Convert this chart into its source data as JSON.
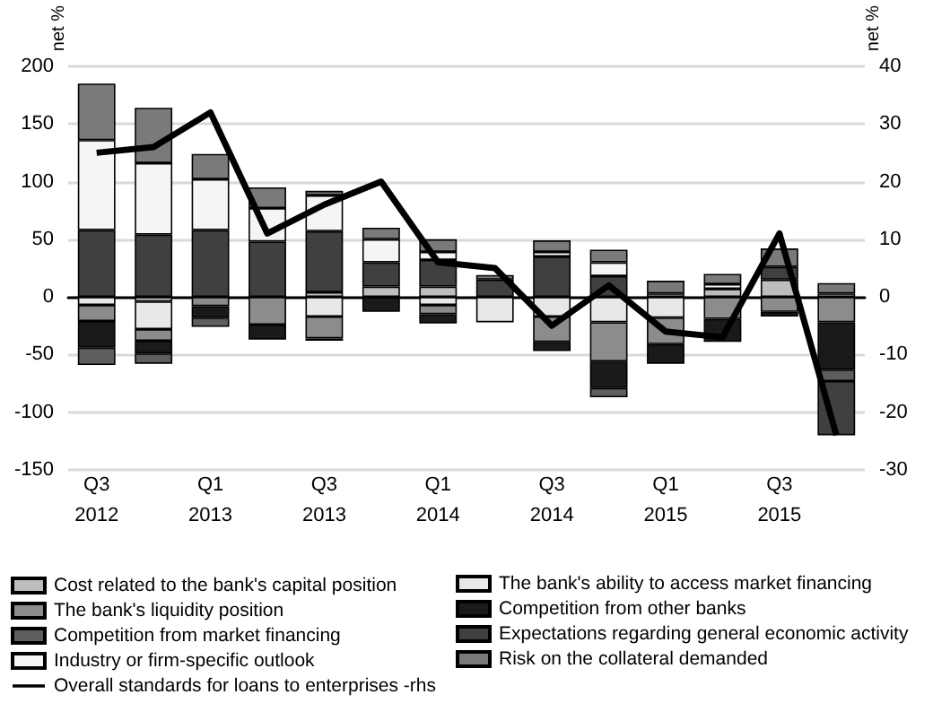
{
  "chart_data": {
    "type": "bar",
    "stacked": true,
    "ylabel": "net %",
    "y2label": "net %",
    "categories": [
      "Q3\n2012",
      null,
      "Q1\n2013",
      null,
      "Q3\n2013",
      null,
      "Q1\n2014",
      null,
      "Q3\n2014",
      null,
      "Q1\n2015",
      null,
      "Q3\n2015",
      null
    ],
    "series": [
      {
        "name": "Cost related to the bank's capital position",
        "color": "#bdbdbd",
        "values": [
          null,
          -4,
          null,
          null,
          4,
          9,
          9,
          null,
          null,
          null,
          3,
          7,
          15,
          3
        ]
      },
      {
        "name": "The bank's ability to access market financing",
        "color": "#e8e8e8",
        "values": [
          -7,
          -24,
          null,
          null,
          -17,
          null,
          -7,
          -22,
          -17,
          -22,
          -18,
          null,
          null,
          null
        ]
      },
      {
        "name": "The bank's liquidity position",
        "color": "#8c8c8c",
        "values": [
          -14,
          -10,
          -8,
          -24,
          -19,
          null,
          -8,
          null,
          -22,
          -34,
          -23,
          -19,
          -13,
          -22
        ]
      },
      {
        "name": "Competition from other banks",
        "color": "#1a1a1a",
        "values": [
          -23,
          -11,
          -10,
          -13,
          -2,
          -13,
          -8,
          null,
          -8,
          -23,
          -17,
          -20,
          -4,
          -41
        ]
      },
      {
        "name": "Competition from market financing",
        "color": "#5e5e5e",
        "values": [
          -15,
          -9,
          -8,
          null,
          null,
          null,
          null,
          null,
          null,
          -8,
          null,
          null,
          null,
          -10
        ]
      },
      {
        "name": "Expectations regarding general economic activity",
        "color": "#404040",
        "values": [
          58,
          54,
          58,
          48,
          53,
          21,
          23,
          15,
          35,
          18,
          null,
          null,
          11,
          -47
        ]
      },
      {
        "name": "Industry or firm-specific outlook",
        "color": "#f5f5f5",
        "values": [
          78,
          62,
          44,
          29,
          31,
          20,
          7,
          null,
          4,
          12,
          null,
          4,
          null,
          null
        ]
      },
      {
        "name": "Risk on the collateral demanded",
        "color": "#7a7a7a",
        "values": [
          49,
          48,
          22,
          18,
          4,
          10,
          11,
          4,
          10,
          11,
          11,
          9,
          16,
          9
        ]
      },
      {
        "name": "Overall standards for loans to enterprises -rhs",
        "type": "line",
        "axis": "y2",
        "color": "#000000",
        "values": [
          25,
          26,
          32,
          11,
          16,
          20,
          6,
          5,
          -5,
          2,
          -6,
          -7,
          11,
          -24
        ]
      }
    ],
    "ylim": [
      -150,
      200
    ],
    "yticks": [
      -150,
      -100,
      -50,
      0,
      50,
      100,
      150,
      200
    ],
    "y2lim": [
      -30,
      40
    ],
    "y2ticks": [
      -30,
      -20,
      -10,
      0,
      10,
      20,
      30,
      40
    ],
    "grid": "y",
    "legend": "bottom",
    "marker": "none",
    "line_style": "solid"
  }
}
